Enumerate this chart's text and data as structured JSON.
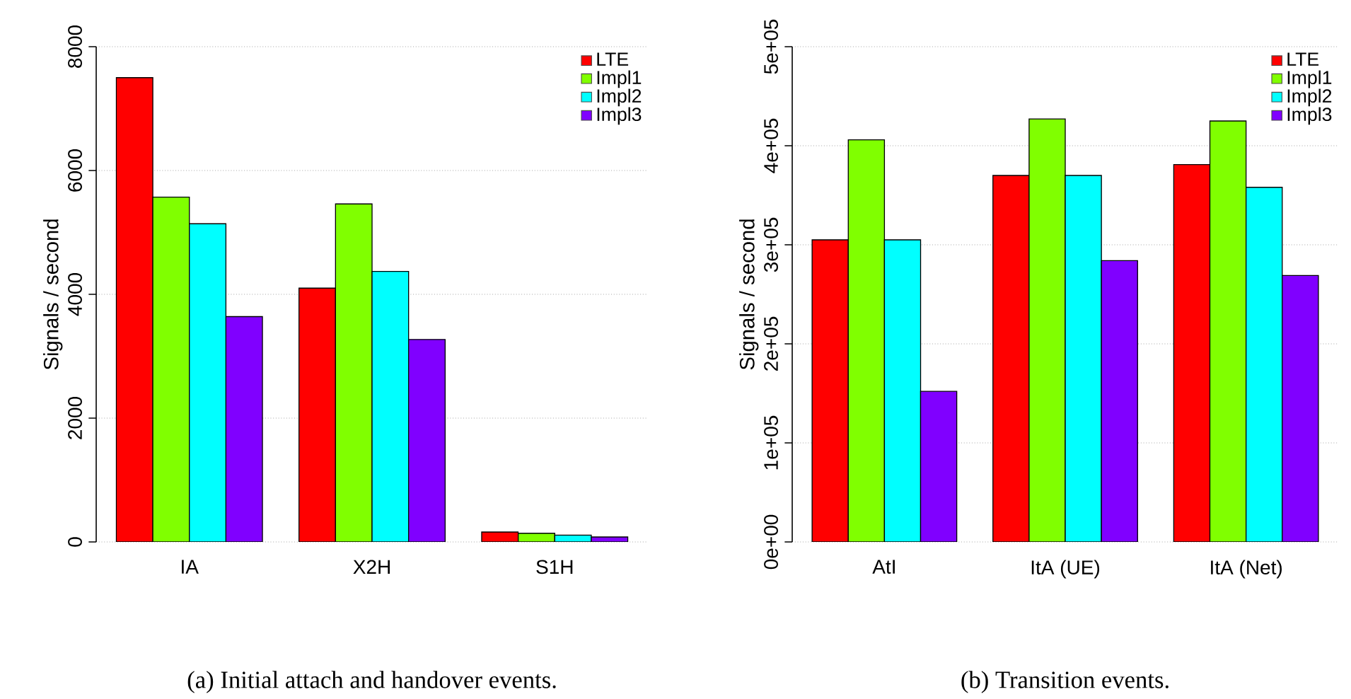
{
  "chart_data": [
    {
      "type": "bar",
      "ylabel": "Signals / second",
      "categories": [
        "IA",
        "X2H",
        "S1H"
      ],
      "series": [
        {
          "name": "LTE",
          "color": "#ff0000",
          "values": [
            7500,
            4100,
            160
          ]
        },
        {
          "name": "Impl1",
          "color": "#80ff00",
          "values": [
            5570,
            5460,
            140
          ]
        },
        {
          "name": "Impl2",
          "color": "#00ffff",
          "values": [
            5140,
            4370,
            110
          ]
        },
        {
          "name": "Impl3",
          "color": "#8000ff",
          "values": [
            3640,
            3270,
            80
          ]
        }
      ],
      "ylim": [
        0,
        8000
      ],
      "yticks": [
        0,
        2000,
        4000,
        6000,
        8000
      ],
      "grid": "y",
      "legend": "top right",
      "annotations": [
        "(a) Initial attach and handover events."
      ]
    },
    {
      "type": "bar",
      "ylabel": "Signals / second",
      "categories": [
        "AtI",
        "ItA (UE)",
        "ItA (Net)"
      ],
      "series": [
        {
          "name": "LTE",
          "color": "#ff0000",
          "values": [
            305000,
            370000,
            381000
          ]
        },
        {
          "name": "Impl1",
          "color": "#80ff00",
          "values": [
            406000,
            427000,
            425000
          ]
        },
        {
          "name": "Impl2",
          "color": "#00ffff",
          "values": [
            305000,
            370000,
            358000
          ]
        },
        {
          "name": "Impl3",
          "color": "#8000ff",
          "values": [
            152000,
            284000,
            269000
          ]
        }
      ],
      "ylim": [
        0,
        500000
      ],
      "yticks": [
        {
          "value": 0,
          "label": "0e+00"
        },
        {
          "value": 100000,
          "label": "1e+05"
        },
        {
          "value": 200000,
          "label": "2e+05"
        },
        {
          "value": 300000,
          "label": "3e+05"
        },
        {
          "value": 400000,
          "label": "4e+05"
        },
        {
          "value": 500000,
          "label": "5e+05"
        }
      ],
      "grid": "y",
      "legend": "top right",
      "annotations": [
        "(b) Transition events."
      ]
    }
  ]
}
